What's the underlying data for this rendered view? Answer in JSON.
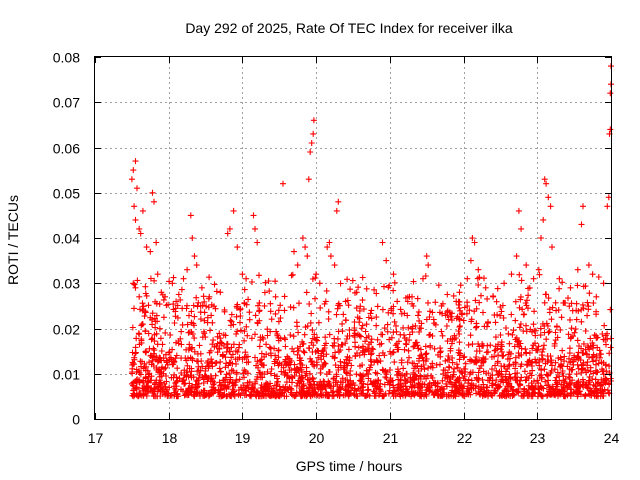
{
  "chart_data": {
    "type": "scatter",
    "title": "Day 292 of 2025, Rate Of TEC Index for receiver ilka",
    "xlabel": "GPS time / hours",
    "ylabel": "ROTI / TECUs",
    "xlim": [
      17,
      24
    ],
    "ylim": [
      0,
      0.08
    ],
    "xticks": [
      "17",
      "18",
      "19",
      "20",
      "21",
      "22",
      "23",
      "24"
    ],
    "yticks": [
      "0",
      "0.01",
      "0.02",
      "0.03",
      "0.04",
      "0.05",
      "0.06",
      "0.07",
      "0.08"
    ],
    "grid": true,
    "marker": "+",
    "marker_color": "#ff0000",
    "series": [
      {
        "name": "ROTI",
        "points": [
          [
            17.5,
            0.053
          ],
          [
            17.52,
            0.055
          ],
          [
            17.55,
            0.057
          ],
          [
            17.57,
            0.051
          ],
          [
            17.53,
            0.047
          ],
          [
            17.55,
            0.044
          ],
          [
            17.6,
            0.042
          ],
          [
            17.62,
            0.041
          ],
          [
            17.65,
            0.046
          ],
          [
            17.7,
            0.038
          ],
          [
            17.75,
            0.037
          ],
          [
            17.78,
            0.05
          ],
          [
            17.8,
            0.048
          ],
          [
            17.83,
            0.039
          ],
          [
            17.52,
            0.03
          ],
          [
            17.55,
            0.029
          ],
          [
            17.6,
            0.027
          ],
          [
            17.85,
            0.032
          ],
          [
            17.9,
            0.028
          ],
          [
            17.95,
            0.027
          ],
          [
            18.05,
            0.03
          ],
          [
            18.1,
            0.026
          ],
          [
            18.2,
            0.031
          ],
          [
            18.25,
            0.033
          ],
          [
            18.3,
            0.045
          ],
          [
            18.32,
            0.04
          ],
          [
            18.35,
            0.036
          ],
          [
            18.38,
            0.034
          ],
          [
            18.45,
            0.029
          ],
          [
            18.55,
            0.027
          ],
          [
            18.7,
            0.028
          ],
          [
            18.8,
            0.041
          ],
          [
            18.83,
            0.042
          ],
          [
            18.88,
            0.046
          ],
          [
            18.93,
            0.038
          ],
          [
            19.0,
            0.032
          ],
          [
            19.05,
            0.031
          ],
          [
            19.15,
            0.045
          ],
          [
            19.17,
            0.042
          ],
          [
            19.2,
            0.039
          ],
          [
            19.3,
            0.025
          ],
          [
            19.45,
            0.027
          ],
          [
            19.55,
            0.052
          ],
          [
            19.7,
            0.037
          ],
          [
            19.75,
            0.034
          ],
          [
            19.82,
            0.04
          ],
          [
            19.85,
            0.038
          ],
          [
            19.88,
            0.036
          ],
          [
            19.92,
            0.059
          ],
          [
            19.94,
            0.061
          ],
          [
            19.96,
            0.063
          ],
          [
            19.97,
            0.066
          ],
          [
            19.9,
            0.053
          ],
          [
            20.0,
            0.032
          ],
          [
            20.05,
            0.03
          ],
          [
            20.15,
            0.038
          ],
          [
            20.18,
            0.039
          ],
          [
            20.2,
            0.036
          ],
          [
            20.25,
            0.034
          ],
          [
            20.28,
            0.046
          ],
          [
            20.3,
            0.048
          ],
          [
            20.4,
            0.026
          ],
          [
            20.55,
            0.028
          ],
          [
            20.75,
            0.024
          ],
          [
            20.9,
            0.039
          ],
          [
            20.95,
            0.035
          ],
          [
            21.05,
            0.032
          ],
          [
            21.1,
            0.026
          ],
          [
            21.3,
            0.027
          ],
          [
            21.45,
            0.031
          ],
          [
            21.5,
            0.036
          ],
          [
            21.52,
            0.034
          ],
          [
            21.7,
            0.025
          ],
          [
            21.9,
            0.026
          ],
          [
            22.05,
            0.031
          ],
          [
            22.1,
            0.035
          ],
          [
            22.12,
            0.04
          ],
          [
            22.15,
            0.039
          ],
          [
            22.2,
            0.033
          ],
          [
            22.3,
            0.029
          ],
          [
            22.4,
            0.027
          ],
          [
            22.55,
            0.03
          ],
          [
            22.65,
            0.032
          ],
          [
            22.72,
            0.036
          ],
          [
            22.75,
            0.046
          ],
          [
            22.78,
            0.042
          ],
          [
            22.85,
            0.034
          ],
          [
            22.95,
            0.031
          ],
          [
            23.02,
            0.033
          ],
          [
            23.05,
            0.04
          ],
          [
            23.08,
            0.044
          ],
          [
            23.1,
            0.053
          ],
          [
            23.12,
            0.052
          ],
          [
            23.15,
            0.049
          ],
          [
            23.18,
            0.047
          ],
          [
            23.2,
            0.038
          ],
          [
            23.3,
            0.031
          ],
          [
            23.45,
            0.029
          ],
          [
            23.55,
            0.033
          ],
          [
            23.6,
            0.043
          ],
          [
            23.62,
            0.047
          ],
          [
            23.7,
            0.034
          ],
          [
            23.75,
            0.032
          ],
          [
            23.8,
            0.027
          ],
          [
            23.9,
            0.03
          ],
          [
            23.95,
            0.047
          ],
          [
            23.97,
            0.049
          ],
          [
            23.98,
            0.063
          ],
          [
            23.99,
            0.064
          ],
          [
            23.99,
            0.072
          ],
          [
            24.0,
            0.074
          ],
          [
            24.0,
            0.078
          ]
        ]
      }
    ]
  }
}
